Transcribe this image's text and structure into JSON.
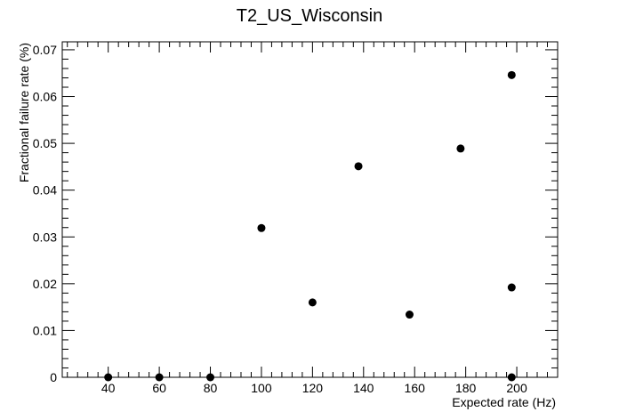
{
  "chart_data": {
    "type": "scatter",
    "title": "T2_US_Wisconsin",
    "xlabel": "Expected rate (Hz)",
    "ylabel": "Fractional failure rate (%)",
    "xlim": [
      22,
      216
    ],
    "ylim": [
      0,
      0.0717
    ],
    "xticks": [
      40,
      60,
      80,
      100,
      120,
      140,
      160,
      180,
      200
    ],
    "yticks": [
      0,
      0.01,
      0.02,
      0.03,
      0.04,
      0.05,
      0.06,
      0.07
    ],
    "xtick_labels": [
      "40",
      "60",
      "80",
      "100",
      "120",
      "140",
      "160",
      "180",
      "200"
    ],
    "ytick_labels": [
      "0",
      "0.01",
      "0.02",
      "0.03",
      "0.04",
      "0.05",
      "0.06",
      "0.07"
    ],
    "grid": false,
    "legend": "none",
    "marker_color": "#000000",
    "points": [
      {
        "x": 40,
        "y": 0
      },
      {
        "x": 60,
        "y": 0
      },
      {
        "x": 80,
        "y": 0
      },
      {
        "x": 100,
        "y": 0.0319
      },
      {
        "x": 120,
        "y": 0.016
      },
      {
        "x": 138,
        "y": 0.0451
      },
      {
        "x": 158,
        "y": 0.0134
      },
      {
        "x": 178,
        "y": 0.0489
      },
      {
        "x": 198,
        "y": 0.0646
      },
      {
        "x": 198,
        "y": 0.0192
      },
      {
        "x": 198,
        "y": 0
      }
    ]
  }
}
